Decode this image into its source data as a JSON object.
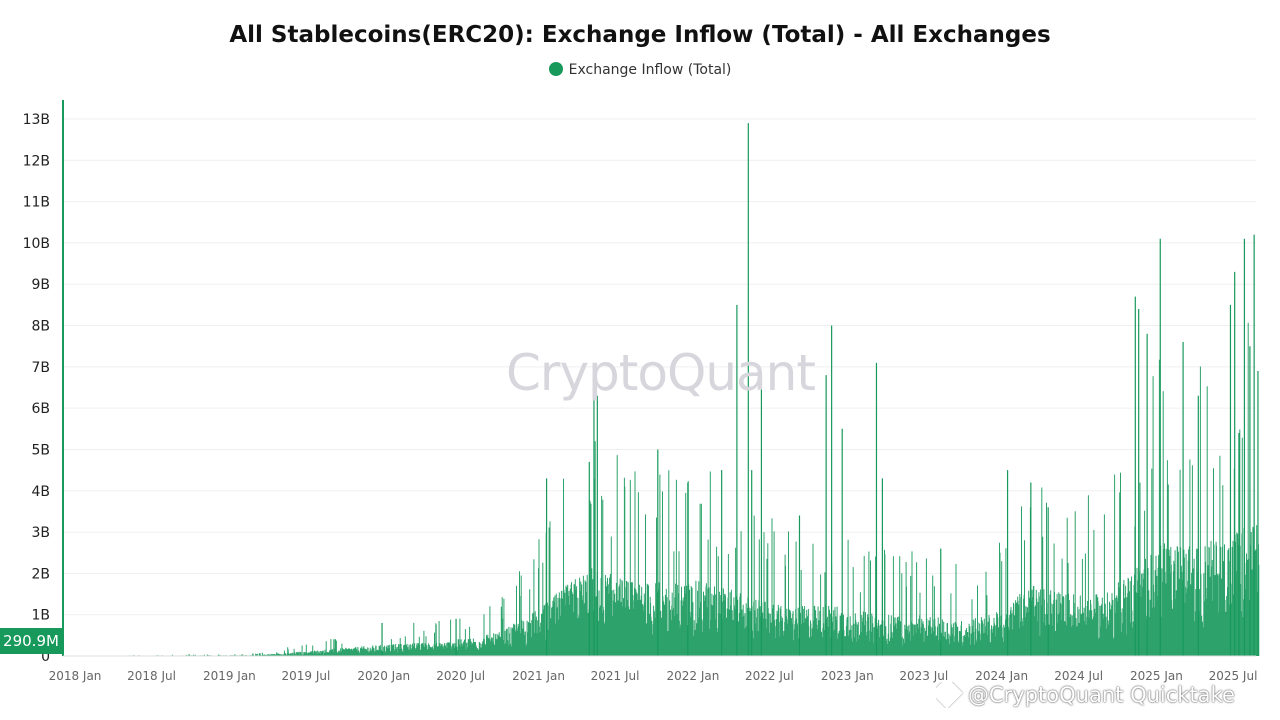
{
  "chart_data": {
    "type": "bar",
    "title": "All Stablecoins(ERC20): Exchange Inflow (Total) - All Exchanges",
    "legend": {
      "placement": "top-center",
      "entries": [
        "Exchange Inflow (Total)"
      ]
    },
    "series": [
      {
        "name": "Exchange Inflow (Total)",
        "color": "#16995b"
      }
    ],
    "y_axis": {
      "ticks": [
        0,
        1,
        2,
        3,
        4,
        5,
        6,
        7,
        8,
        9,
        10,
        11,
        12,
        13
      ],
      "tick_labels": [
        "0",
        "1B",
        "2B",
        "3B",
        "4B",
        "5B",
        "6B",
        "7B",
        "8B",
        "9B",
        "10B",
        "11B",
        "12B",
        "13B"
      ],
      "ylim": [
        0,
        13.5
      ],
      "unit": "billions"
    },
    "x_axis": {
      "range": [
        "2017-12-01",
        "2025-09-01"
      ],
      "ticks": [
        "2018-01-01",
        "2018-07-01",
        "2019-01-01",
        "2019-07-01",
        "2020-01-01",
        "2020-07-01",
        "2021-01-01",
        "2021-07-01",
        "2022-01-01",
        "2022-07-01",
        "2023-01-01",
        "2023-07-01",
        "2024-01-01",
        "2024-07-01",
        "2025-01-01",
        "2025-07-01"
      ],
      "tick_labels": [
        "2018 Jan",
        "2018 Jul",
        "2019 Jan",
        "2019 Jul",
        "2020 Jan",
        "2020 Jul",
        "2021 Jan",
        "2021 Jul",
        "2022 Jan",
        "2022 Jul",
        "2023 Jan",
        "2023 Jul",
        "2024 Jan",
        "2024 Jul",
        "2025 Jan",
        "2025 Jul"
      ]
    },
    "grid": true,
    "current_value_label": "290.9M",
    "current_value": 0.2909,
    "level_profile": {
      "x": [
        "2017-12-15",
        "2019-03-01",
        "2019-06-01",
        "2019-12-01",
        "2020-06-01",
        "2020-10-01",
        "2021-01-01",
        "2021-05-01",
        "2021-08-01",
        "2021-11-01",
        "2022-02-01",
        "2022-05-01",
        "2022-08-01",
        "2022-12-01",
        "2023-03-01",
        "2023-07-01",
        "2023-10-01",
        "2024-01-01",
        "2024-03-01",
        "2024-06-01",
        "2024-09-01",
        "2024-11-01",
        "2025-01-01",
        "2025-04-01",
        "2025-08-31"
      ],
      "y": [
        0.0,
        0.02,
        0.08,
        0.22,
        0.32,
        0.5,
        1.0,
        1.9,
        1.6,
        1.55,
        1.6,
        1.3,
        1.05,
        1.1,
        0.9,
        0.85,
        0.75,
        0.95,
        1.5,
        1.35,
        1.3,
        1.8,
        2.4,
        2.3,
        2.9
      ]
    },
    "peaks": {
      "x": [
        "2019-12-28",
        "2020-06-20",
        "2021-01-20",
        "2021-05-01",
        "2021-05-12",
        "2021-05-20",
        "2021-10-10",
        "2021-12-20",
        "2022-03-10",
        "2022-04-15",
        "2022-05-12",
        "2022-05-20",
        "2022-06-12",
        "2022-09-10",
        "2022-11-12",
        "2022-11-25",
        "2022-12-20",
        "2023-03-11",
        "2023-03-25",
        "2023-08-10",
        "2024-01-15",
        "2024-03-10",
        "2024-04-20",
        "2024-11-12",
        "2024-11-20",
        "2024-12-10",
        "2025-01-10",
        "2025-03-05",
        "2025-04-10",
        "2025-06-25",
        "2025-07-05",
        "2025-07-15",
        "2025-07-28",
        "2025-08-10",
        "2025-08-20",
        "2025-08-29"
      ],
      "y": [
        0.8,
        0.9,
        4.3,
        4.7,
        6.7,
        6.3,
        5.0,
        4.2,
        4.5,
        8.5,
        12.9,
        4.5,
        6.8,
        3.4,
        6.8,
        8.0,
        5.5,
        7.1,
        4.3,
        2.6,
        4.5,
        4.2,
        3.6,
        8.7,
        8.4,
        7.8,
        10.1,
        7.6,
        6.3,
        8.5,
        9.3,
        5.4,
        10.1,
        7.5,
        10.2,
        6.9
      ]
    }
  },
  "watermark": "CryptoQuant",
  "attribution": "@CryptoQuant Quicktake"
}
